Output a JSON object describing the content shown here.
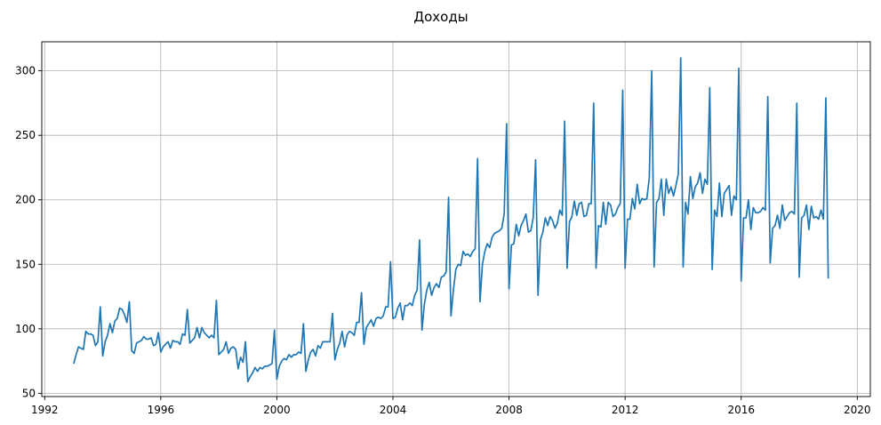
{
  "chart_data": {
    "type": "line",
    "title": "Доходы",
    "xlabel": "",
    "ylabel": "",
    "xlim": [
      1991.9,
      2020.45
    ],
    "ylim": [
      47.5,
      322.5
    ],
    "x_ticks": [
      1992,
      1996,
      2000,
      2004,
      2008,
      2012,
      2016,
      2020
    ],
    "y_ticks": [
      50,
      100,
      150,
      200,
      250,
      300
    ],
    "grid": true,
    "colors": {
      "series": "#1f77b4",
      "grid": "#b0b0b0",
      "frame": "#000000"
    },
    "series": [
      {
        "x_start": 1993.0,
        "x_step": 0.08333333,
        "values": [
          73,
          80,
          86,
          85,
          84,
          98,
          96,
          96,
          95,
          87,
          90,
          117,
          79,
          90,
          95,
          104,
          97,
          106,
          108,
          116,
          115,
          111,
          105,
          121,
          83,
          81,
          89,
          90,
          91,
          94,
          92,
          92,
          93,
          87,
          88,
          97,
          82,
          86,
          88,
          90,
          85,
          91,
          90,
          90,
          88,
          96,
          95,
          115,
          89,
          91,
          93,
          101,
          93,
          101,
          97,
          95,
          93,
          95,
          93,
          122,
          80,
          82,
          84,
          90,
          81,
          85,
          86,
          84,
          69,
          78,
          74,
          90,
          59,
          63,
          66,
          70,
          67,
          70,
          69,
          71,
          71,
          72,
          73,
          99,
          61,
          71,
          75,
          77,
          76,
          80,
          78,
          80,
          80,
          82,
          81,
          104,
          67,
          76,
          82,
          84,
          79,
          87,
          85,
          90,
          90,
          90,
          90,
          112,
          76,
          84,
          89,
          98,
          86,
          95,
          98,
          97,
          95,
          105,
          105,
          128,
          88,
          101,
          104,
          107,
          102,
          108,
          109,
          108,
          110,
          117,
          117,
          152,
          108,
          109,
          116,
          120,
          107,
          118,
          118,
          120,
          118,
          126,
          130,
          169,
          99,
          119,
          130,
          136,
          126,
          132,
          135,
          132,
          140,
          141,
          144,
          202,
          110,
          130,
          146,
          150,
          149,
          160,
          157,
          158,
          156,
          160,
          162,
          232,
          121,
          150,
          160,
          166,
          163,
          171,
          174,
          175,
          176,
          178,
          189,
          259,
          131,
          165,
          166,
          181,
          172,
          180,
          184,
          189,
          175,
          176,
          186,
          231,
          126,
          169,
          175,
          186,
          180,
          187,
          184,
          178,
          182,
          192,
          188,
          261,
          147,
          183,
          187,
          199,
          188,
          197,
          198,
          187,
          188,
          197,
          197,
          275,
          147,
          180,
          179,
          198,
          181,
          198,
          196,
          187,
          189,
          194,
          197,
          285,
          147,
          185,
          185,
          201,
          193,
          212,
          197,
          201,
          200,
          201,
          217,
          300,
          148,
          198,
          201,
          216,
          188,
          216,
          205,
          210,
          203,
          211,
          220,
          310,
          148,
          198,
          189,
          218,
          201,
          210,
          213,
          221,
          205,
          216,
          212,
          287,
          146,
          192,
          187,
          213,
          187,
          205,
          208,
          211,
          188,
          203,
          200,
          302,
          137,
          186,
          186,
          200,
          177,
          194,
          190,
          190,
          191,
          194,
          192,
          280,
          151,
          178,
          180,
          188,
          178,
          196,
          184,
          187,
          190,
          191,
          189,
          275,
          140,
          186,
          188,
          196,
          177,
          195,
          186,
          187,
          185,
          192,
          185,
          279,
          139
        ]
      }
    ]
  }
}
